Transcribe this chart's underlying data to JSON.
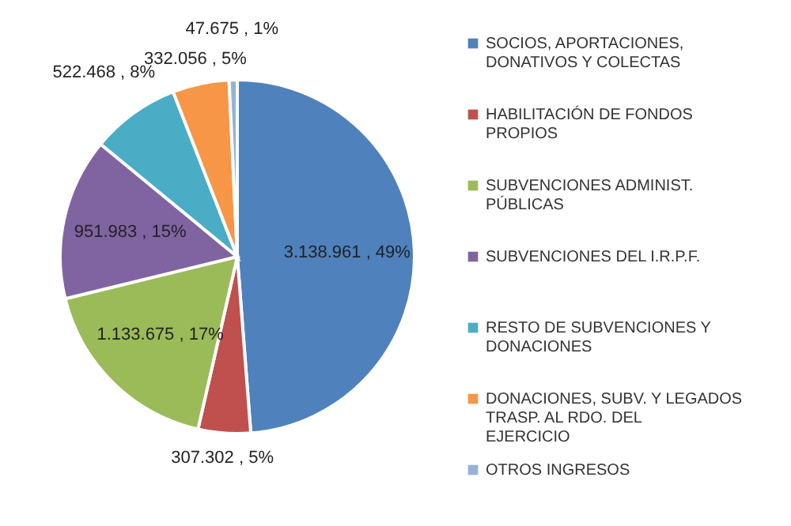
{
  "chart_data": {
    "type": "pie",
    "categories": [
      "SOCIOS, APORTACIONES, DONATIVOS Y COLECTAS",
      "HABILITACIÓN DE FONDOS PROPIOS",
      "SUBVENCIONES ADMINIST. PÚBLICAS",
      "SUBVENCIONES DEL I.R.P.F.",
      "RESTO DE SUBVENCIONES Y DONACIONES",
      "DONACIONES, SUBV. Y LEGADOS TRASP. AL RDO. DEL EJERCICIO",
      "OTROS INGRESOS"
    ],
    "values": [
      3138961,
      307302,
      1133675,
      951983,
      522468,
      332056,
      47675
    ],
    "value_labels": [
      "3.138.961 , 49%",
      "307.302 , 5%",
      "1.133.675 , 17%",
      "951.983 , 15%",
      "522.468 , 8%",
      "332.056 , 5%",
      "47.675 , 1%"
    ],
    "colors": [
      "#4f81bd",
      "#c0504d",
      "#9bbb59",
      "#8064a2",
      "#4bacc6",
      "#f79646",
      "#95b3d7"
    ],
    "legend": "right"
  }
}
